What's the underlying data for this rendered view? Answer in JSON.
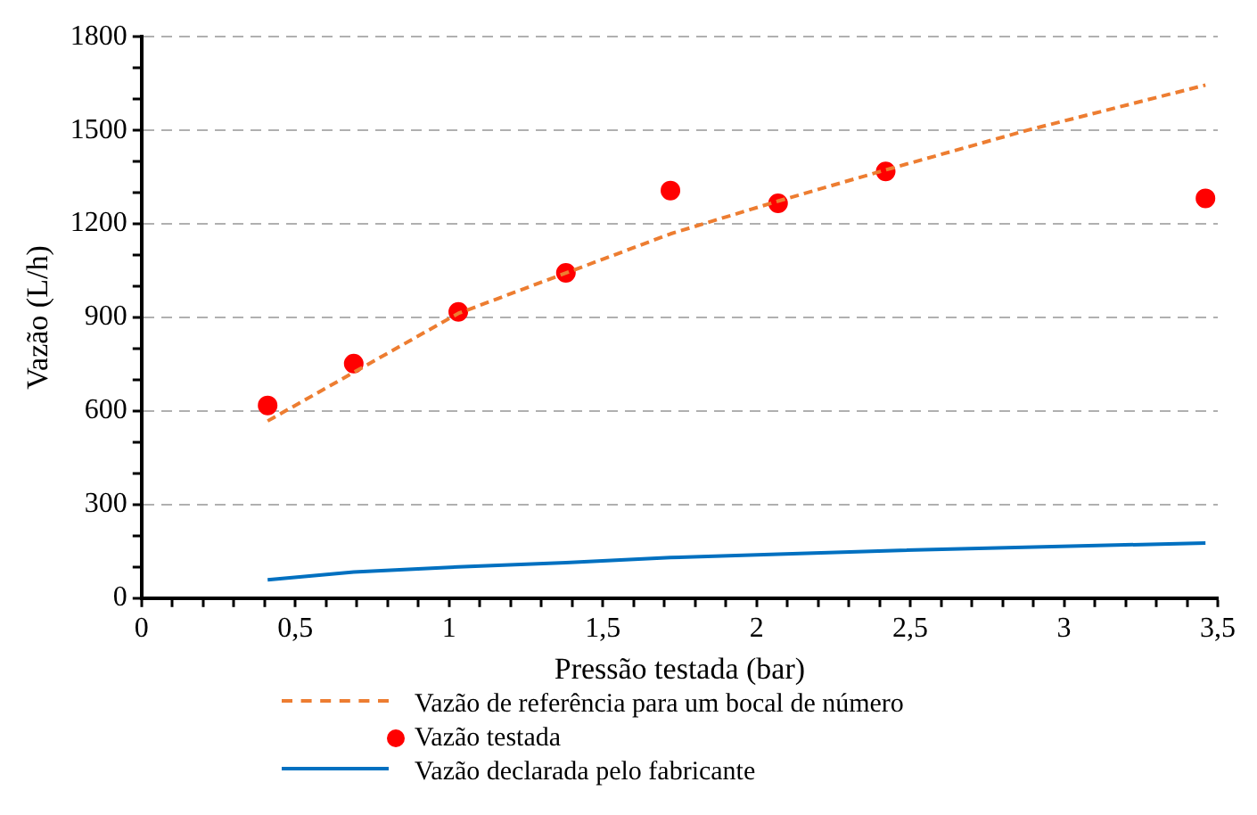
{
  "chart_data": {
    "type": "line",
    "xlabel": "Pressão testada (bar)",
    "ylabel": "Vazão (L/h)",
    "xlim": [
      0,
      3.5
    ],
    "ylim": [
      0,
      1800
    ],
    "xticks": [
      {
        "value": 0,
        "label": "0"
      },
      {
        "value": 0.1,
        "label": null
      },
      {
        "value": 0.2,
        "label": null
      },
      {
        "value": 0.3,
        "label": null
      },
      {
        "value": 0.4,
        "label": null
      },
      {
        "value": 0.5,
        "label": "0,5"
      },
      {
        "value": 0.6,
        "label": null
      },
      {
        "value": 0.7,
        "label": null
      },
      {
        "value": 0.8,
        "label": null
      },
      {
        "value": 0.9,
        "label": null
      },
      {
        "value": 1,
        "label": "1"
      },
      {
        "value": 1.1,
        "label": null
      },
      {
        "value": 1.2,
        "label": null
      },
      {
        "value": 1.3,
        "label": null
      },
      {
        "value": 1.4,
        "label": null
      },
      {
        "value": 1.5,
        "label": "1,5"
      },
      {
        "value": 1.6,
        "label": null
      },
      {
        "value": 1.7,
        "label": null
      },
      {
        "value": 1.8,
        "label": null
      },
      {
        "value": 1.9,
        "label": null
      },
      {
        "value": 2,
        "label": "2"
      },
      {
        "value": 2.1,
        "label": null
      },
      {
        "value": 2.2,
        "label": null
      },
      {
        "value": 2.3,
        "label": null
      },
      {
        "value": 2.4,
        "label": null
      },
      {
        "value": 2.5,
        "label": "2,5"
      },
      {
        "value": 2.6,
        "label": null
      },
      {
        "value": 2.7,
        "label": null
      },
      {
        "value": 2.8,
        "label": null
      },
      {
        "value": 2.9,
        "label": null
      },
      {
        "value": 3,
        "label": "3"
      },
      {
        "value": 3.1,
        "label": null
      },
      {
        "value": 3.2,
        "label": null
      },
      {
        "value": 3.3,
        "label": null
      },
      {
        "value": 3.4,
        "label": null
      },
      {
        "value": 3.5,
        "label": "3,5"
      }
    ],
    "yticks": [
      0,
      {
        "value": 100,
        "label": null
      },
      {
        "value": 200,
        "label": null
      },
      300,
      {
        "value": 400,
        "label": null
      },
      {
        "value": 500,
        "label": null
      },
      600,
      {
        "value": 700,
        "label": null
      },
      {
        "value": 800,
        "label": null
      },
      900,
      {
        "value": 1000,
        "label": null
      },
      {
        "value": 1100,
        "label": null
      },
      1200,
      {
        "value": 1300,
        "label": null
      },
      {
        "value": 1400,
        "label": null
      },
      1500,
      {
        "value": 1600,
        "label": null
      },
      {
        "value": 1700,
        "label": null
      },
      1800
    ],
    "grid": "y",
    "legend": "bottom",
    "series": [
      {
        "name": "Vazão de referência para um bocal de número",
        "color": "#ed7d31",
        "line_style": "dashed",
        "marker": "none",
        "x": [
          0.41,
          1.03,
          1.72,
          2.07,
          2.42,
          2.88,
          3.46
        ],
        "values": [
          568,
          913,
          1168,
          1273,
          1373,
          1500,
          1645
        ]
      },
      {
        "name": "Vazão testada",
        "type": "scatter",
        "color": "#ff0000",
        "marker": "circle",
        "x": [
          0.41,
          0.69,
          1.03,
          1.38,
          1.72,
          2.07,
          2.42,
          3.46
        ],
        "values": [
          618,
          752,
          918,
          1043,
          1307,
          1266,
          1368,
          1282
        ]
      },
      {
        "name": "Vazão declarada pelo fabricante",
        "color": "#0070c0",
        "line_style": "solid",
        "marker": "none",
        "x": [
          0.41,
          0.69,
          1.03,
          1.38,
          1.72,
          2.07,
          2.42,
          3.46
        ],
        "values": [
          59,
          84,
          100,
          114,
          130,
          141,
          152,
          177
        ]
      }
    ]
  }
}
